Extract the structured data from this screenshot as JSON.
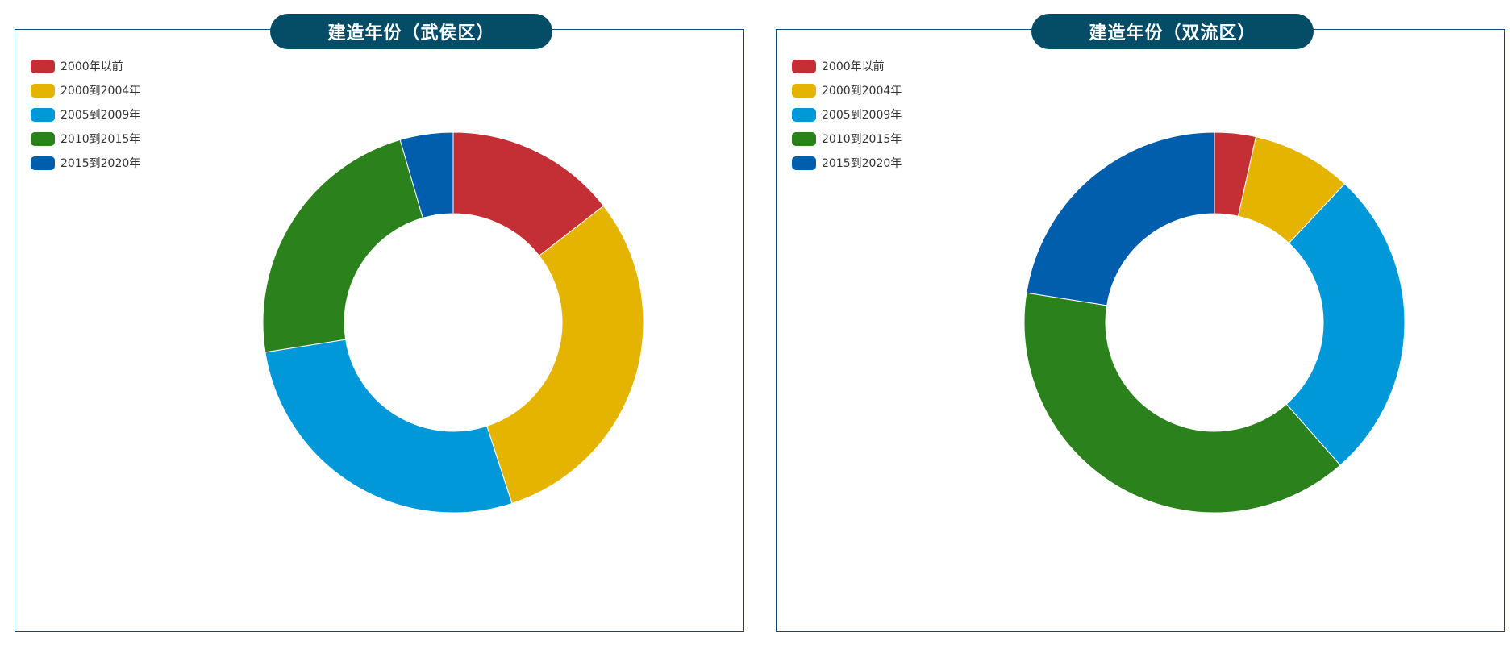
{
  "chart_data": [
    {
      "type": "pie",
      "title": "建造年份（武侯区）",
      "categories": [
        "2000年以前",
        "2000到2004年",
        "2005到2009年",
        "2010到2015年",
        "2015到2020年"
      ],
      "values": [
        14.5,
        30.5,
        27.5,
        23,
        4.5
      ],
      "colors": [
        "#c42e35",
        "#e5b400",
        "#0098d9",
        "#2b821d",
        "#005ead"
      ],
      "legend_position": "top-left"
    },
    {
      "type": "pie",
      "title": "建造年份（双流区）",
      "categories": [
        "2000年以前",
        "2000到2004年",
        "2005到2009年",
        "2010到2015年",
        "2015到2020年"
      ],
      "values": [
        3.5,
        8.5,
        26.5,
        39,
        22.5
      ],
      "colors": [
        "#c42e35",
        "#e5b400",
        "#0098d9",
        "#2b821d",
        "#005ead"
      ],
      "legend_position": "top-left"
    }
  ]
}
